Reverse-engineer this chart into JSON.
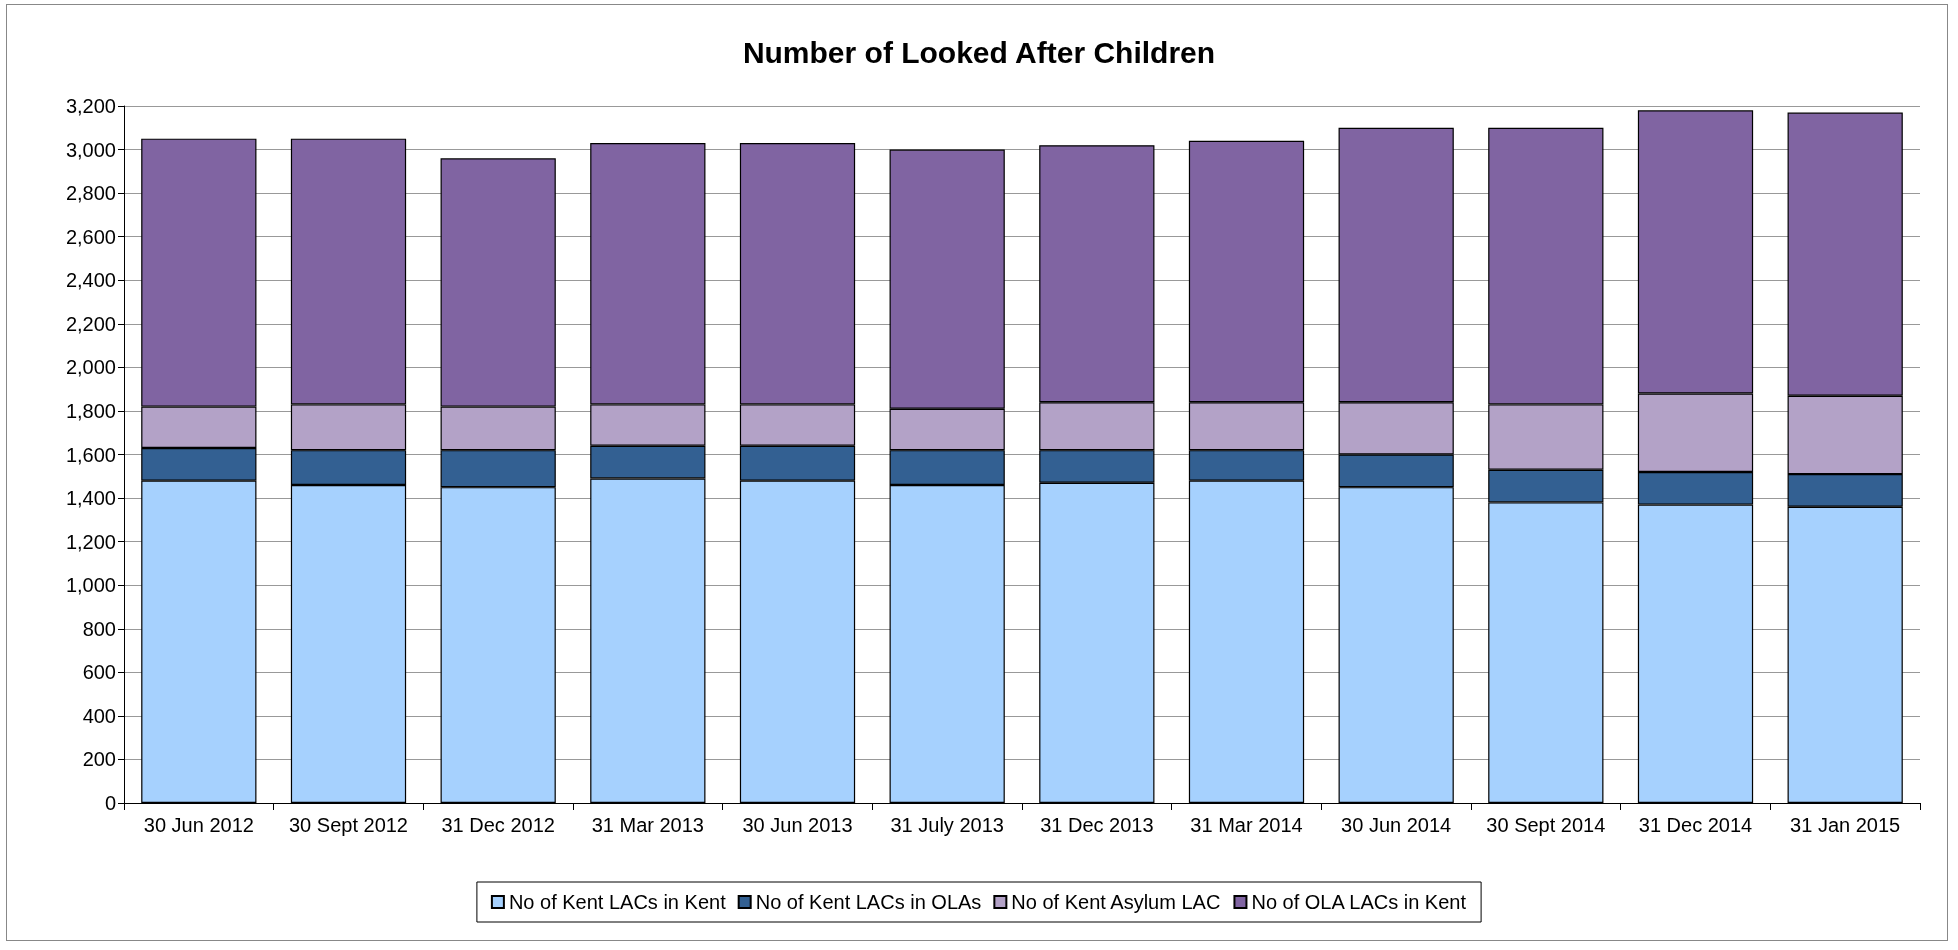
{
  "chart_data": {
    "type": "bar",
    "stacked": true,
    "title": "Number of Looked After Children",
    "categories": [
      "30 Jun 2012",
      "30 Sept 2012",
      "31 Dec 2012",
      "31 Mar 2013",
      "30 Jun 2013",
      "31 July 2013",
      "31 Dec 2013",
      "31 Mar 2014",
      "30 Jun 2014",
      "30 Sept 2014",
      "31 Dec 2014",
      "31 Jan 2015"
    ],
    "series": [
      {
        "name": "No of Kent LACs in Kent",
        "color": "#a6d1fe",
        "values": [
          1480,
          1460,
          1450,
          1490,
          1480,
          1460,
          1470,
          1480,
          1450,
          1380,
          1370,
          1360
        ]
      },
      {
        "name": "No of Kent LACs in OLAs",
        "color": "#336092",
        "values": [
          150,
          160,
          170,
          150,
          160,
          160,
          150,
          140,
          150,
          150,
          150,
          150
        ]
      },
      {
        "name": "No of Kent Asylum LAC",
        "color": "#b3a2c7",
        "values": [
          190,
          210,
          200,
          190,
          190,
          190,
          220,
          220,
          240,
          300,
          360,
          360
        ]
      },
      {
        "name": "No of OLA LACs in Kent",
        "color": "#8064a2",
        "values": [
          1230,
          1220,
          1140,
          1200,
          1200,
          1190,
          1180,
          1200,
          1260,
          1270,
          1300,
          1300
        ]
      }
    ],
    "ylim": [
      0,
      3200
    ],
    "yticks": [
      0,
      200,
      400,
      600,
      800,
      {
        "value": 1000,
        "label": "1,000"
      },
      {
        "value": 1200,
        "label": "1,200"
      },
      {
        "value": 1400,
        "label": "1,400"
      },
      {
        "value": 1600,
        "label": "1,600"
      },
      {
        "value": 1800,
        "label": "1,800"
      },
      {
        "value": 2000,
        "label": "2,000"
      },
      {
        "value": 2200,
        "label": "2,200"
      },
      {
        "value": 2400,
        "label": "2,400"
      },
      {
        "value": 2600,
        "label": "2,600"
      },
      {
        "value": 2800,
        "label": "2,800"
      },
      {
        "value": 3000,
        "label": "3,000"
      },
      {
        "value": 3200,
        "label": "3,200"
      }
    ],
    "grid": "y",
    "legend": "bottom"
  }
}
